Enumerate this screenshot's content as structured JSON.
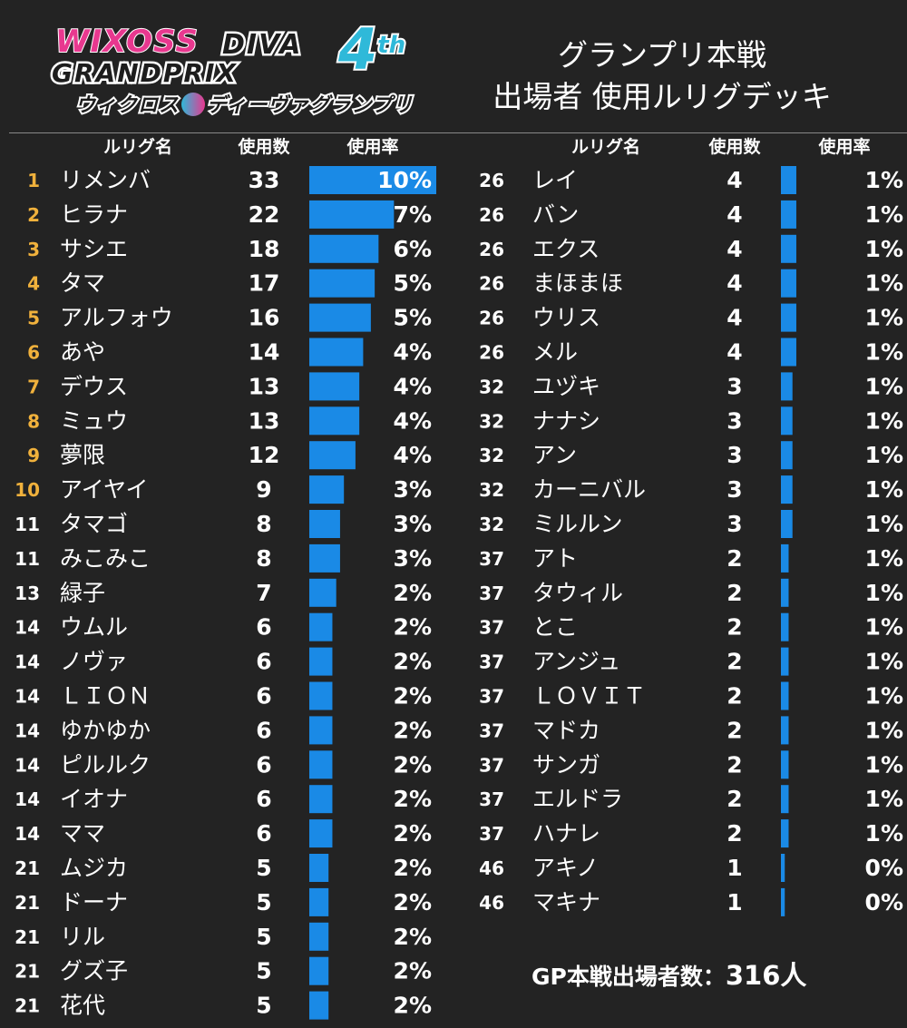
{
  "logo": {
    "wixoss": "WIXOSS",
    "diva": "DIVA",
    "grandprix": "GRANDPRIX",
    "edition": "4",
    "edition_suffix": "th",
    "subtitle_left": "ウィクロス",
    "subtitle_right": "ディーヴァグランプリ"
  },
  "title": {
    "line1": "グランプリ本戦",
    "line2": "出場者 使用ルリグデッキ"
  },
  "summary": {
    "label": "GP本戦出場者数：",
    "value": "316人"
  },
  "colors": {
    "bar": "#1a8ae6",
    "rank_top10": "#f0b13c",
    "rank_other": "#ffffff",
    "background": "#232323"
  },
  "chart_data": {
    "type": "bar",
    "orientation": "horizontal",
    "columns": [
      "ルリグ名",
      "使用数",
      "使用率"
    ],
    "total": 316,
    "rows": [
      {
        "rank": "1",
        "name": "リメンバ",
        "count": 33,
        "pct": "10%"
      },
      {
        "rank": "2",
        "name": "ヒラナ",
        "count": 22,
        "pct": "7%"
      },
      {
        "rank": "3",
        "name": "サシエ",
        "count": 18,
        "pct": "6%"
      },
      {
        "rank": "4",
        "name": "タマ",
        "count": 17,
        "pct": "5%"
      },
      {
        "rank": "5",
        "name": "アルフォウ",
        "count": 16,
        "pct": "5%"
      },
      {
        "rank": "6",
        "name": "あや",
        "count": 14,
        "pct": "4%"
      },
      {
        "rank": "7",
        "name": "デウス",
        "count": 13,
        "pct": "4%"
      },
      {
        "rank": "8",
        "name": "ミュウ",
        "count": 13,
        "pct": "4%"
      },
      {
        "rank": "9",
        "name": "夢限",
        "count": 12,
        "pct": "4%"
      },
      {
        "rank": "10",
        "name": "アイヤイ",
        "count": 9,
        "pct": "3%"
      },
      {
        "rank": "11",
        "name": "タマゴ",
        "count": 8,
        "pct": "3%"
      },
      {
        "rank": "11",
        "name": "みこみこ",
        "count": 8,
        "pct": "3%"
      },
      {
        "rank": "13",
        "name": "緑子",
        "count": 7,
        "pct": "2%"
      },
      {
        "rank": "14",
        "name": "ウムル",
        "count": 6,
        "pct": "2%"
      },
      {
        "rank": "14",
        "name": "ノヴァ",
        "count": 6,
        "pct": "2%"
      },
      {
        "rank": "14",
        "name": "ＬＩＯＮ",
        "count": 6,
        "pct": "2%"
      },
      {
        "rank": "14",
        "name": "ゆかゆか",
        "count": 6,
        "pct": "2%"
      },
      {
        "rank": "14",
        "name": "ピルルク",
        "count": 6,
        "pct": "2%"
      },
      {
        "rank": "14",
        "name": "イオナ",
        "count": 6,
        "pct": "2%"
      },
      {
        "rank": "14",
        "name": "ママ",
        "count": 6,
        "pct": "2%"
      },
      {
        "rank": "21",
        "name": "ムジカ",
        "count": 5,
        "pct": "2%"
      },
      {
        "rank": "21",
        "name": "ドーナ",
        "count": 5,
        "pct": "2%"
      },
      {
        "rank": "21",
        "name": "リル",
        "count": 5,
        "pct": "2%"
      },
      {
        "rank": "21",
        "name": "グズ子",
        "count": 5,
        "pct": "2%"
      },
      {
        "rank": "21",
        "name": "花代",
        "count": 5,
        "pct": "2%"
      },
      {
        "rank": "26",
        "name": "レイ",
        "count": 4,
        "pct": "1%"
      },
      {
        "rank": "26",
        "name": "バン",
        "count": 4,
        "pct": "1%"
      },
      {
        "rank": "26",
        "name": "エクス",
        "count": 4,
        "pct": "1%"
      },
      {
        "rank": "26",
        "name": "まほまほ",
        "count": 4,
        "pct": "1%"
      },
      {
        "rank": "26",
        "name": "ウリス",
        "count": 4,
        "pct": "1%"
      },
      {
        "rank": "26",
        "name": "メル",
        "count": 4,
        "pct": "1%"
      },
      {
        "rank": "32",
        "name": "ユヅキ",
        "count": 3,
        "pct": "1%"
      },
      {
        "rank": "32",
        "name": "ナナシ",
        "count": 3,
        "pct": "1%"
      },
      {
        "rank": "32",
        "name": "アン",
        "count": 3,
        "pct": "1%"
      },
      {
        "rank": "32",
        "name": "カーニバル",
        "count": 3,
        "pct": "1%"
      },
      {
        "rank": "32",
        "name": "ミルルン",
        "count": 3,
        "pct": "1%"
      },
      {
        "rank": "37",
        "name": "アト",
        "count": 2,
        "pct": "1%"
      },
      {
        "rank": "37",
        "name": "タウィル",
        "count": 2,
        "pct": "1%"
      },
      {
        "rank": "37",
        "name": "とこ",
        "count": 2,
        "pct": "1%"
      },
      {
        "rank": "37",
        "name": "アンジュ",
        "count": 2,
        "pct": "1%"
      },
      {
        "rank": "37",
        "name": "ＬＯＶＩＴ",
        "count": 2,
        "pct": "1%"
      },
      {
        "rank": "37",
        "name": "マドカ",
        "count": 2,
        "pct": "1%"
      },
      {
        "rank": "37",
        "name": "サンガ",
        "count": 2,
        "pct": "1%"
      },
      {
        "rank": "37",
        "name": "エルドラ",
        "count": 2,
        "pct": "1%"
      },
      {
        "rank": "37",
        "name": "ハナレ",
        "count": 2,
        "pct": "1%"
      },
      {
        "rank": "46",
        "name": "アキノ",
        "count": 1,
        "pct": "0%"
      },
      {
        "rank": "46",
        "name": "マキナ",
        "count": 1,
        "pct": "0%"
      }
    ]
  }
}
